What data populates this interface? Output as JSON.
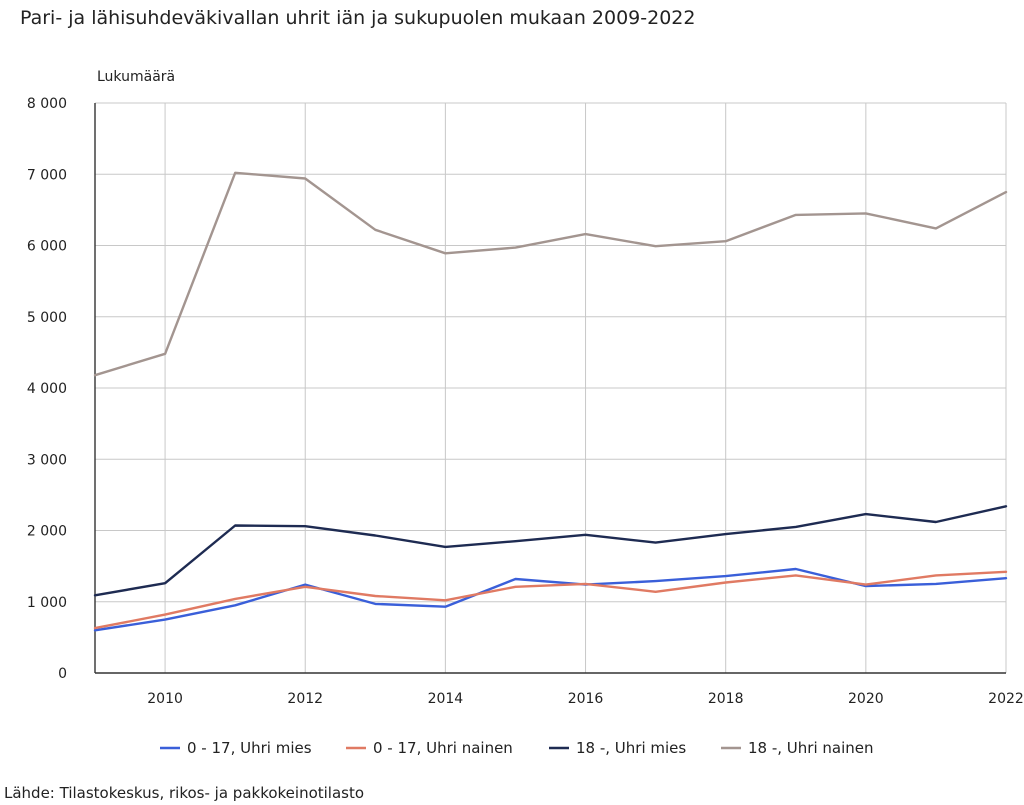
{
  "chart_data": {
    "type": "line",
    "title": "Pari- ja lähisuhdeväkivallan uhrit iän ja sukupuolen mukaan 2009-2022",
    "ylabel": "Lukumäärä",
    "xlabel": "",
    "x": [
      2009,
      2010,
      2011,
      2012,
      2013,
      2014,
      2015,
      2016,
      2017,
      2018,
      2019,
      2020,
      2021,
      2022
    ],
    "xlim": [
      2009,
      2022
    ],
    "ylim": [
      0,
      8000
    ],
    "x_ticks": [
      2010,
      2012,
      2014,
      2016,
      2018,
      2020,
      2022
    ],
    "y_ticks": [
      0,
      1000,
      2000,
      3000,
      4000,
      5000,
      6000,
      7000,
      8000
    ],
    "y_tick_labels": [
      "0",
      "1 000",
      "2 000",
      "3 000",
      "4 000",
      "5 000",
      "6 000",
      "7 000",
      "8 000"
    ],
    "grid": true,
    "legend_position": "bottom",
    "series": [
      {
        "name": "0 - 17, Uhri mies",
        "color": "#3a5fd9",
        "values": [
          600,
          750,
          950,
          1240,
          970,
          930,
          1320,
          1240,
          1290,
          1360,
          1460,
          1220,
          1250,
          1330
        ]
      },
      {
        "name": "0 - 17, Uhri nainen",
        "color": "#e07a63",
        "values": [
          630,
          820,
          1040,
          1210,
          1080,
          1020,
          1210,
          1250,
          1140,
          1270,
          1370,
          1240,
          1370,
          1420
        ]
      },
      {
        "name": "18 -, Uhri mies",
        "color": "#1e2b52",
        "values": [
          1090,
          1260,
          2070,
          2060,
          1930,
          1770,
          1850,
          1940,
          1830,
          1950,
          2050,
          2230,
          2120,
          2340
        ]
      },
      {
        "name": "18 -, Uhri nainen",
        "color": "#a39590",
        "values": [
          4180,
          4480,
          7020,
          6940,
          6220,
          5890,
          5970,
          6160,
          5990,
          6060,
          6430,
          6450,
          6240,
          6750
        ]
      }
    ]
  },
  "footer": {
    "source": "Lähde: Tilastokeskus, rikos- ja pakkokeinotilasto"
  }
}
